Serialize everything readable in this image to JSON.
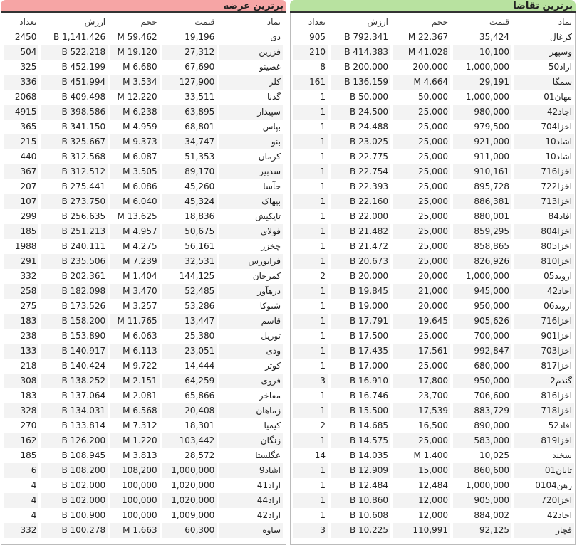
{
  "columns": {
    "symbol": "نماد",
    "price": "قیمت",
    "volume": "حجم",
    "value": "ارزش",
    "count": "تعداد"
  },
  "colors": {
    "supply_header": "#f6a5a5",
    "demand_header": "#b8e2a0"
  },
  "supply": {
    "title": "برترین عرضه",
    "rows": [
      [
        "دی",
        "19,196",
        "59.462 M",
        "1,141.426 B",
        "2450"
      ],
      [
        "فزرین",
        "27,312",
        "19.120 M",
        "522.218 B",
        "504"
      ],
      [
        "غصینو",
        "67,690",
        "6.680 M",
        "452.199 B",
        "325"
      ],
      [
        "کلر",
        "127,900",
        "3.534 M",
        "451.994 B",
        "336"
      ],
      [
        "گدنا",
        "33,511",
        "12.220 M",
        "409.498 B",
        "2068"
      ],
      [
        "سپیدار",
        "63,895",
        "6.238 M",
        "398.586 B",
        "4915"
      ],
      [
        "بپاس",
        "68,801",
        "4.959 M",
        "341.150 B",
        "365"
      ],
      [
        "بنو",
        "34,747",
        "9.373 M",
        "325.667 B",
        "215"
      ],
      [
        "کرمان",
        "51,353",
        "6.087 M",
        "312.568 B",
        "440"
      ],
      [
        "سدبیر",
        "89,170",
        "3.505 M",
        "312.512 B",
        "367"
      ],
      [
        "حآسا",
        "45,260",
        "6.086 M",
        "275.441 B",
        "207"
      ],
      [
        "بپهاک",
        "45,324",
        "6.040 M",
        "273.750 B",
        "107"
      ],
      [
        "تاپکیش",
        "18,836",
        "13.625 M",
        "256.635 B",
        "299"
      ],
      [
        "فولای",
        "50,675",
        "4.957 M",
        "251.213 B",
        "185"
      ],
      [
        "چخزر",
        "56,161",
        "4.275 M",
        "240.111 B",
        "1988"
      ],
      [
        "فرابورس",
        "32,531",
        "7.239 M",
        "235.506 B",
        "291"
      ],
      [
        "کمرجان",
        "144,125",
        "1.404 M",
        "202.361 B",
        "332"
      ],
      [
        "درهآور",
        "52,485",
        "3.470 M",
        "182.098 B",
        "258"
      ],
      [
        "شتوکا",
        "53,286",
        "3.257 M",
        "173.526 B",
        "275"
      ],
      [
        "قاسم",
        "13,447",
        "11.765 M",
        "158.200 B",
        "183"
      ],
      [
        "توریل",
        "25,380",
        "6.063 M",
        "153.890 B",
        "238"
      ],
      [
        "ودی",
        "23,051",
        "6.113 M",
        "140.917 B",
        "133"
      ],
      [
        "کوثر",
        "14,444",
        "9.722 M",
        "140.424 B",
        "218"
      ],
      [
        "فروی",
        "64,259",
        "2.151 M",
        "138.252 B",
        "308"
      ],
      [
        "مفاخر",
        "65,866",
        "2.081 M",
        "137.064 B",
        "183"
      ],
      [
        "زماهان",
        "20,408",
        "6.568 M",
        "134.031 B",
        "328"
      ],
      [
        "کیمیا",
        "18,301",
        "7.312 M",
        "133.814 B",
        "270"
      ],
      [
        "زنگان",
        "103,442",
        "1.220 M",
        "126.200 B",
        "162"
      ],
      [
        "عگلستا",
        "28,572",
        "3.813 M",
        "108.945 B",
        "185"
      ],
      [
        "اشاد9",
        "1,000,000",
        "108,200",
        "108.200 B",
        "6"
      ],
      [
        "اراد41",
        "1,020,000",
        "100,000",
        "102.000 B",
        "4"
      ],
      [
        "اراد44",
        "1,020,000",
        "100,000",
        "102.000 B",
        "4"
      ],
      [
        "اراد42",
        "1,009,000",
        "100,000",
        "100.900 B",
        "4"
      ],
      [
        "ساوه",
        "60,300",
        "1.663 M",
        "100.278 B",
        "332"
      ]
    ]
  },
  "demand": {
    "title": "برترین تقاضا",
    "rows": [
      [
        "کزغال",
        "35,424",
        "22.367 M",
        "792.341 B",
        "905"
      ],
      [
        "وسپهر",
        "10,100",
        "41.028 M",
        "414.383 B",
        "210"
      ],
      [
        "اراد50",
        "1,000,000",
        "200,000",
        "200.000 B",
        "8"
      ],
      [
        "سمگا",
        "29,191",
        "4.664 M",
        "136.159 B",
        "161"
      ],
      [
        "مهان01",
        "1,000,000",
        "50,000",
        "50.000 B",
        "1"
      ],
      [
        "اجاد42",
        "980,000",
        "25,000",
        "24.500 B",
        "1"
      ],
      [
        "اخزا704",
        "979,500",
        "25,000",
        "24.488 B",
        "1"
      ],
      [
        "اشاد10",
        "921,000",
        "25,000",
        "23.025 B",
        "1"
      ],
      [
        "اشاد10",
        "911,000",
        "25,000",
        "22.775 B",
        "1"
      ],
      [
        "اخزا716",
        "910,161",
        "25,000",
        "22.754 B",
        "1"
      ],
      [
        "اخزا722",
        "895,728",
        "25,000",
        "22.393 B",
        "1"
      ],
      [
        "اخزا713",
        "886,381",
        "25,000",
        "22.160 B",
        "1"
      ],
      [
        "افاد84",
        "880,001",
        "25,000",
        "22.000 B",
        "1"
      ],
      [
        "اخزا804",
        "859,295",
        "25,000",
        "21.482 B",
        "1"
      ],
      [
        "اخزا805",
        "858,865",
        "25,000",
        "21.472 B",
        "1"
      ],
      [
        "اخزا810",
        "826,926",
        "25,000",
        "20.673 B",
        "1"
      ],
      [
        "اروند05",
        "1,000,000",
        "20,000",
        "20.000 B",
        "2"
      ],
      [
        "اجاد42",
        "945,000",
        "21,000",
        "19.845 B",
        "1"
      ],
      [
        "اروند06",
        "950,000",
        "20,000",
        "19.000 B",
        "1"
      ],
      [
        "اخزا716",
        "905,626",
        "19,645",
        "17.791 B",
        "1"
      ],
      [
        "اخزا901",
        "700,000",
        "25,000",
        "17.500 B",
        "1"
      ],
      [
        "اخزا703",
        "992,847",
        "17,561",
        "17.435 B",
        "1"
      ],
      [
        "اخزا817",
        "680,000",
        "25,000",
        "17.000 B",
        "1"
      ],
      [
        "گندم2",
        "950,000",
        "17,800",
        "16.910 B",
        "3"
      ],
      [
        "اخزا816",
        "706,600",
        "23,700",
        "16.746 B",
        "1"
      ],
      [
        "اخزا718",
        "883,729",
        "17,539",
        "15.500 B",
        "1"
      ],
      [
        "افاد52",
        "890,000",
        "16,500",
        "14.685 B",
        "2"
      ],
      [
        "اخزا819",
        "583,000",
        "25,000",
        "14.575 B",
        "1"
      ],
      [
        "سخند",
        "10,025",
        "1.400 M",
        "14.035 B",
        "14"
      ],
      [
        "تابان01",
        "860,600",
        "15,000",
        "12.909 B",
        "1"
      ],
      [
        "رهن0104",
        "1,000,000",
        "12,484",
        "12.484 B",
        "1"
      ],
      [
        "اخزا720",
        "905,000",
        "12,000",
        "10.860 B",
        "1"
      ],
      [
        "اجاد42",
        "884,002",
        "12,000",
        "10.608 B",
        "1"
      ],
      [
        "قچار",
        "92,125",
        "110,991",
        "10.225 B",
        "3"
      ]
    ]
  }
}
